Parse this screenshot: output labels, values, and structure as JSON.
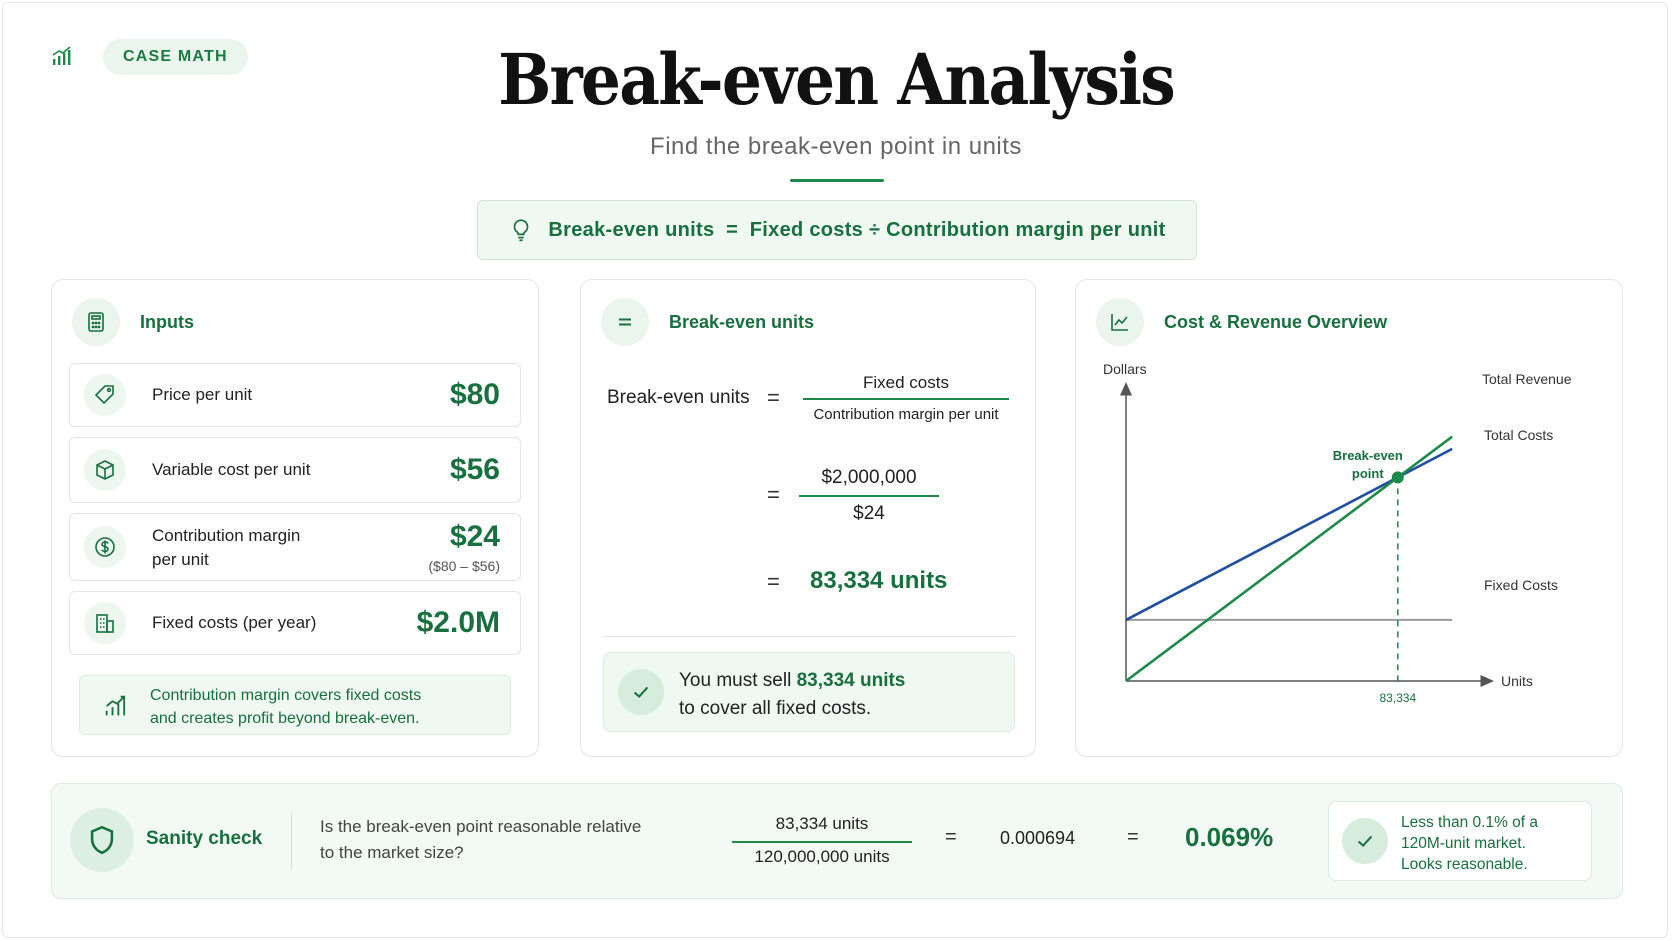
{
  "header": {
    "tag": "CASE MATH",
    "title": "Break-even Analysis",
    "subtitle": "Find the break-even point in units",
    "formula": "Break-even units  =  Fixed costs ÷ Contribution margin per unit"
  },
  "inputs": {
    "title": "Inputs",
    "rows": [
      {
        "label": "Price per unit",
        "value": "$80",
        "icon": "tag-icon"
      },
      {
        "label": "Variable cost per unit",
        "value": "$56",
        "icon": "box-icon"
      },
      {
        "label_line1": "Contribution margin",
        "label_line2": "per unit",
        "value": "$24",
        "note": "($80 – $56)",
        "icon": "dollar-icon"
      },
      {
        "label": "Fixed costs (per year)",
        "value": "$2.0M",
        "icon": "building-icon"
      }
    ],
    "insight_line1": "Contribution margin covers fixed costs",
    "insight_line2": "and creates profit beyond break-even."
  },
  "calculation": {
    "title": "Break-even units",
    "lhs": "Break-even units",
    "eq": "=",
    "frac1_num": "Fixed costs",
    "frac1_den": "Contribution margin per unit",
    "frac2_num": "$2,000,000",
    "frac2_den": "$24",
    "result": "83,334 units",
    "callout_pre": "You must sell ",
    "callout_bold": "83,334 units",
    "callout_line2": "to cover all fixed costs."
  },
  "chart": {
    "title": "Cost & Revenue Overview"
  },
  "chart_data": {
    "type": "line",
    "ylabel": "Dollars",
    "xlabel": "Units",
    "series": [
      {
        "name": "Total Revenue",
        "color": "#1d8a4a",
        "values": [
          [
            0,
            0
          ],
          [
            100000,
            8000000
          ]
        ]
      },
      {
        "name": "Total Costs",
        "color": "#1f4fa0",
        "values": [
          [
            0,
            2000000
          ],
          [
            100000,
            7600000
          ]
        ]
      },
      {
        "name": "Fixed Costs",
        "color": "#9a9a9a",
        "values": [
          [
            0,
            2000000
          ],
          [
            100000,
            2000000
          ]
        ]
      }
    ],
    "annotation": {
      "label_line1": "Break-even",
      "label_line2": "point",
      "x": 83334,
      "x_label": "83,334"
    },
    "xlim": [
      0,
      107000
    ],
    "ylim": [
      0,
      9200000
    ],
    "grid": false
  },
  "sanity": {
    "title": "Sanity check",
    "question_line1": "Is the break-even point reasonable relative",
    "question_line2": "to the market size?",
    "num": "83,334 units",
    "den": "120,000,000 units",
    "eq": "=",
    "decimal": "0.000694",
    "percent": "0.069%",
    "verdict_line1": "Less than 0.1% of a",
    "verdict_line2": "120M-unit market.",
    "verdict_line3": "Looks reasonable."
  },
  "colors": {
    "accent": "#1d8a4a",
    "accent_dark": "#17703d",
    "blue": "#1f4fa0",
    "soft": "#f0f8f2"
  }
}
